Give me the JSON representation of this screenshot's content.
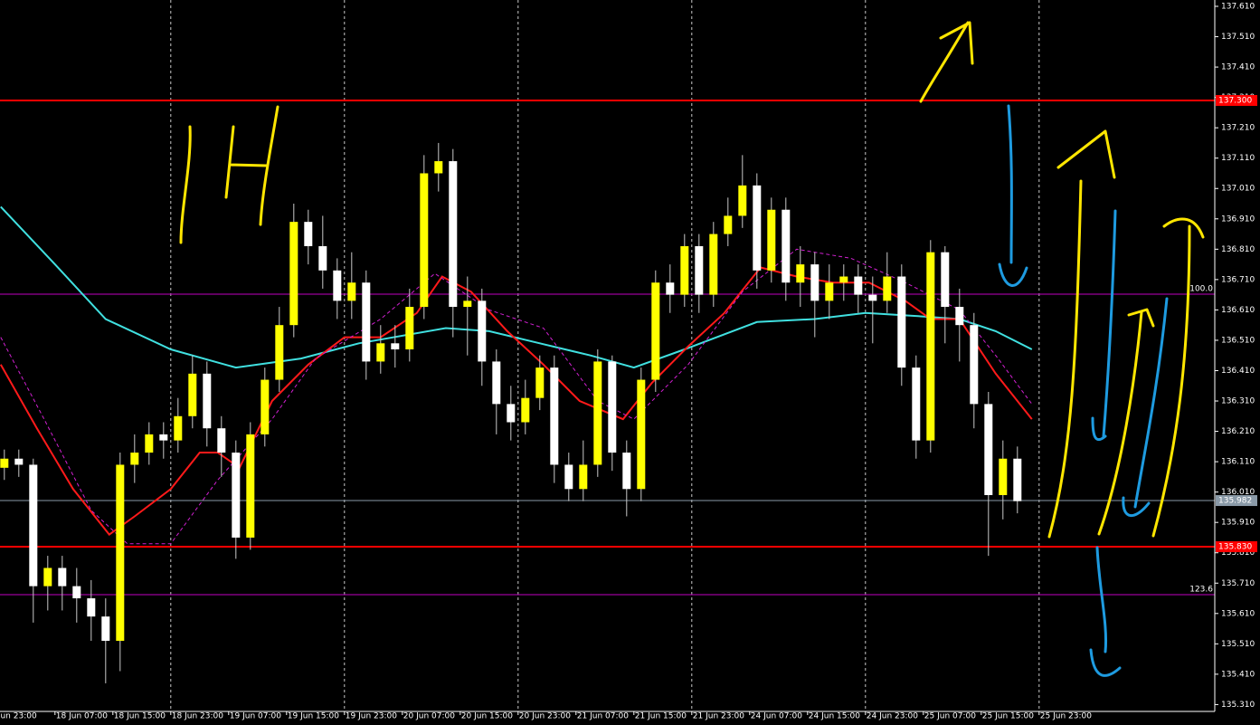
{
  "chart_data": {
    "type": "candlestick",
    "x": [
      1,
      3,
      5,
      7,
      9,
      11,
      13,
      15,
      17,
      19,
      21,
      23,
      25,
      27,
      29,
      31,
      33,
      35,
      37,
      39,
      41,
      43,
      45,
      47,
      49,
      51,
      53,
      55,
      57,
      59,
      61,
      63,
      65,
      67,
      69,
      71,
      73,
      75,
      77,
      79,
      81,
      83,
      85,
      87,
      89,
      91,
      93,
      95,
      97,
      99,
      101,
      103,
      105,
      107,
      109,
      111,
      113,
      115,
      117,
      119,
      121,
      123,
      125,
      127,
      129,
      131,
      133,
      135,
      137,
      139,
      141
    ],
    "open": [
      136.09,
      136.12,
      136.1,
      135.7,
      135.76,
      135.7,
      135.66,
      135.6,
      135.52,
      136.1,
      136.14,
      136.2,
      136.18,
      136.26,
      136.4,
      136.22,
      136.14,
      135.86,
      136.2,
      136.38,
      136.56,
      136.9,
      136.82,
      136.74,
      136.64,
      136.7,
      136.44,
      136.5,
      136.48,
      136.62,
      137.06,
      137.1,
      136.62,
      136.64,
      136.44,
      136.3,
      136.24,
      136.32,
      136.42,
      136.1,
      136.02,
      136.1,
      136.44,
      136.14,
      136.02,
      136.38,
      136.7,
      136.66,
      136.82,
      136.66,
      136.86,
      136.92,
      137.02,
      136.74,
      136.94,
      136.7,
      136.76,
      136.64,
      136.7,
      136.72,
      136.66,
      136.64,
      136.72,
      136.42,
      136.18,
      136.8,
      136.62,
      136.56,
      136.3,
      136.0,
      136.12
    ],
    "high": [
      136.15,
      136.15,
      136.12,
      135.8,
      135.8,
      135.76,
      135.72,
      135.66,
      136.14,
      136.2,
      136.24,
      136.24,
      136.32,
      136.46,
      136.44,
      136.26,
      136.18,
      136.24,
      136.42,
      136.62,
      136.96,
      136.94,
      136.92,
      136.78,
      136.8,
      136.74,
      136.56,
      136.56,
      136.68,
      137.12,
      137.16,
      137.14,
      136.72,
      136.68,
      136.48,
      136.36,
      136.38,
      136.46,
      136.46,
      136.14,
      136.18,
      136.48,
      136.46,
      136.18,
      136.42,
      136.74,
      136.76,
      136.86,
      136.86,
      136.9,
      136.98,
      137.12,
      137.06,
      136.98,
      136.98,
      136.82,
      136.8,
      136.76,
      136.76,
      136.76,
      136.72,
      136.8,
      136.76,
      136.46,
      136.84,
      136.82,
      136.68,
      136.6,
      136.34,
      136.18,
      136.16
    ],
    "low": [
      136.05,
      136.06,
      135.58,
      135.62,
      135.62,
      135.58,
      135.52,
      135.38,
      135.42,
      136.04,
      136.1,
      136.12,
      136.14,
      136.22,
      136.16,
      136.06,
      135.79,
      135.82,
      136.16,
      136.34,
      136.52,
      136.76,
      136.68,
      136.58,
      136.58,
      136.38,
      136.4,
      136.42,
      136.44,
      136.58,
      137.0,
      136.52,
      136.46,
      136.36,
      136.2,
      136.18,
      136.2,
      136.28,
      136.04,
      135.98,
      135.98,
      136.06,
      136.08,
      135.93,
      135.98,
      136.34,
      136.6,
      136.62,
      136.6,
      136.62,
      136.82,
      136.88,
      136.68,
      136.7,
      136.64,
      136.62,
      136.52,
      136.58,
      136.64,
      136.6,
      136.5,
      136.6,
      136.36,
      136.12,
      136.14,
      136.5,
      136.44,
      136.22,
      135.8,
      135.92,
      135.94
    ],
    "close": [
      136.12,
      136.1,
      135.7,
      135.76,
      135.7,
      135.66,
      135.6,
      135.52,
      136.1,
      136.14,
      136.2,
      136.18,
      136.26,
      136.4,
      136.22,
      136.14,
      135.86,
      136.2,
      136.38,
      136.56,
      136.9,
      136.82,
      136.74,
      136.64,
      136.7,
      136.44,
      136.5,
      136.48,
      136.62,
      137.06,
      137.1,
      136.62,
      136.64,
      136.44,
      136.3,
      136.24,
      136.32,
      136.42,
      136.1,
      136.02,
      136.1,
      136.44,
      136.14,
      136.02,
      136.38,
      136.7,
      136.66,
      136.82,
      136.66,
      136.86,
      136.92,
      137.02,
      136.74,
      136.94,
      136.7,
      136.76,
      136.64,
      136.7,
      136.72,
      136.66,
      136.64,
      136.72,
      136.42,
      136.18,
      136.8,
      136.62,
      136.56,
      136.3,
      136.0,
      136.12,
      135.98
    ],
    "up_color": "#ffff00",
    "down_color": "#ffffff",
    "wick_color": "#c8c8c8",
    "lines": [
      {
        "color": "#40e0e0",
        "dash": false,
        "x": [
          0.5,
          8,
          15,
          24,
          33,
          42,
          50,
          62,
          68,
          75,
          82,
          88,
          95,
          105,
          113,
          120,
          127,
          133,
          138,
          143
        ],
        "values": [
          136.95,
          136.76,
          136.58,
          136.48,
          136.42,
          136.45,
          136.5,
          136.55,
          136.54,
          136.5,
          136.46,
          136.42,
          136.48,
          136.57,
          136.58,
          136.6,
          136.59,
          136.58,
          136.54,
          136.48
        ]
      },
      {
        "color": "#ff1a1a",
        "dash": false,
        "x": [
          0.5,
          5.5,
          10.5,
          15.5,
          19,
          24,
          28,
          30.5,
          33.5,
          38,
          43,
          48,
          53,
          58,
          61.5,
          65.5,
          70.5,
          75.5,
          80.5,
          86.5,
          90.5,
          95.5,
          100.5,
          105.5,
          110.5,
          115.5,
          120.5,
          125.5,
          129,
          133,
          138,
          143
        ],
        "values": [
          136.43,
          136.22,
          136.02,
          135.87,
          135.93,
          136.02,
          136.14,
          136.14,
          136.09,
          136.31,
          136.43,
          136.52,
          136.52,
          136.6,
          136.72,
          136.67,
          136.54,
          136.43,
          136.31,
          136.25,
          136.37,
          136.49,
          136.6,
          136.75,
          136.72,
          136.7,
          136.7,
          136.64,
          136.58,
          136.58,
          136.4,
          136.25
        ]
      },
      {
        "color": "#d020d0",
        "dash": true,
        "x": [
          0.5,
          6.5,
          13,
          18,
          24,
          30.5,
          38,
          44,
          53,
          60.5,
          68,
          75.5,
          83,
          88,
          95.5,
          103,
          110.5,
          118,
          125.5,
          133,
          138,
          143
        ],
        "values": [
          136.52,
          136.25,
          135.95,
          135.84,
          135.84,
          136.05,
          136.25,
          136.45,
          136.58,
          136.73,
          136.61,
          136.55,
          136.31,
          136.25,
          136.43,
          136.67,
          136.81,
          136.78,
          136.7,
          136.61,
          136.46,
          136.3
        ]
      }
    ],
    "levels": [
      {
        "value": 137.3,
        "label": "137.300",
        "color": "#ff0000",
        "style": "axis-box"
      },
      {
        "value": 135.83,
        "label": "135.830",
        "color": "#ff0000",
        "style": "axis-box"
      },
      {
        "value": 135.982,
        "label": "135.982",
        "color": "#8a9aa8",
        "style": "axis-box"
      },
      {
        "value": 136.662,
        "label": "100.0",
        "color": "#c000c0",
        "style": "inline"
      },
      {
        "value": 135.672,
        "label": "123.6",
        "color": "#c000c0",
        "style": "inline"
      }
    ],
    "xlim": [
      0.4,
      168.275
    ],
    "ylim": [
      135.2874,
      137.6309
    ],
    "xticks": [
      {
        "value": 0,
        "label": "Jun 23:00"
      },
      {
        "value": 8,
        "label": "18 Jun 07:00"
      },
      {
        "value": 16,
        "label": "18 Jun 15:00"
      },
      {
        "value": 24,
        "label": "18 Jun 23:00"
      },
      {
        "value": 32,
        "label": "19 Jun 07:00"
      },
      {
        "value": 40,
        "label": "19 Jun 15:00"
      },
      {
        "value": 48,
        "label": "19 Jun 23:00"
      },
      {
        "value": 56,
        "label": "20 Jun 07:00"
      },
      {
        "value": 64,
        "label": "20 Jun 15:00"
      },
      {
        "value": 72,
        "label": "20 Jun 23:00"
      },
      {
        "value": 80,
        "label": "21 Jun 07:00"
      },
      {
        "value": 88,
        "label": "21 Jun 15:00"
      },
      {
        "value": 96,
        "label": "21 Jun 23:00"
      },
      {
        "value": 104,
        "label": "24 Jun 07:00"
      },
      {
        "value": 112,
        "label": "24 Jun 15:00"
      },
      {
        "value": 120,
        "label": "24 Jun 23:00"
      },
      {
        "value": 128,
        "label": "25 Jun 07:00"
      },
      {
        "value": 136,
        "label": "25 Jun 15:00"
      },
      {
        "value": 144,
        "label": "25 Jun 23:00"
      }
    ],
    "yticks": [
      {
        "value": 137.61,
        "label": "137.610"
      },
      {
        "value": 137.51,
        "label": "137.510"
      },
      {
        "value": 137.41,
        "label": "137.410"
      },
      {
        "value": 137.31,
        "label": "137.310"
      },
      {
        "value": 137.21,
        "label": "137.210"
      },
      {
        "value": 137.11,
        "label": "137.110"
      },
      {
        "value": 137.01,
        "label": "137.010"
      },
      {
        "value": 136.91,
        "label": "136.910"
      },
      {
        "value": 136.81,
        "label": "136.810"
      },
      {
        "value": 136.71,
        "label": "136.710"
      },
      {
        "value": 136.61,
        "label": "136.610"
      },
      {
        "value": 136.51,
        "label": "136.510"
      },
      {
        "value": 136.41,
        "label": "136.410"
      },
      {
        "value": 136.31,
        "label": "136.310"
      },
      {
        "value": 136.21,
        "label": "136.210"
      },
      {
        "value": 136.11,
        "label": "136.110"
      },
      {
        "value": 136.01,
        "label": "136.010"
      },
      {
        "value": 135.91,
        "label": "135.910"
      },
      {
        "value": 135.81,
        "label": "135.810"
      },
      {
        "value": 135.71,
        "label": "135.710"
      },
      {
        "value": 135.61,
        "label": "135.610"
      },
      {
        "value": 135.51,
        "label": "135.510"
      },
      {
        "value": 135.41,
        "label": "135.410"
      },
      {
        "value": 135.31,
        "label": "135.310"
      }
    ],
    "vgrid_every": 3
  }
}
